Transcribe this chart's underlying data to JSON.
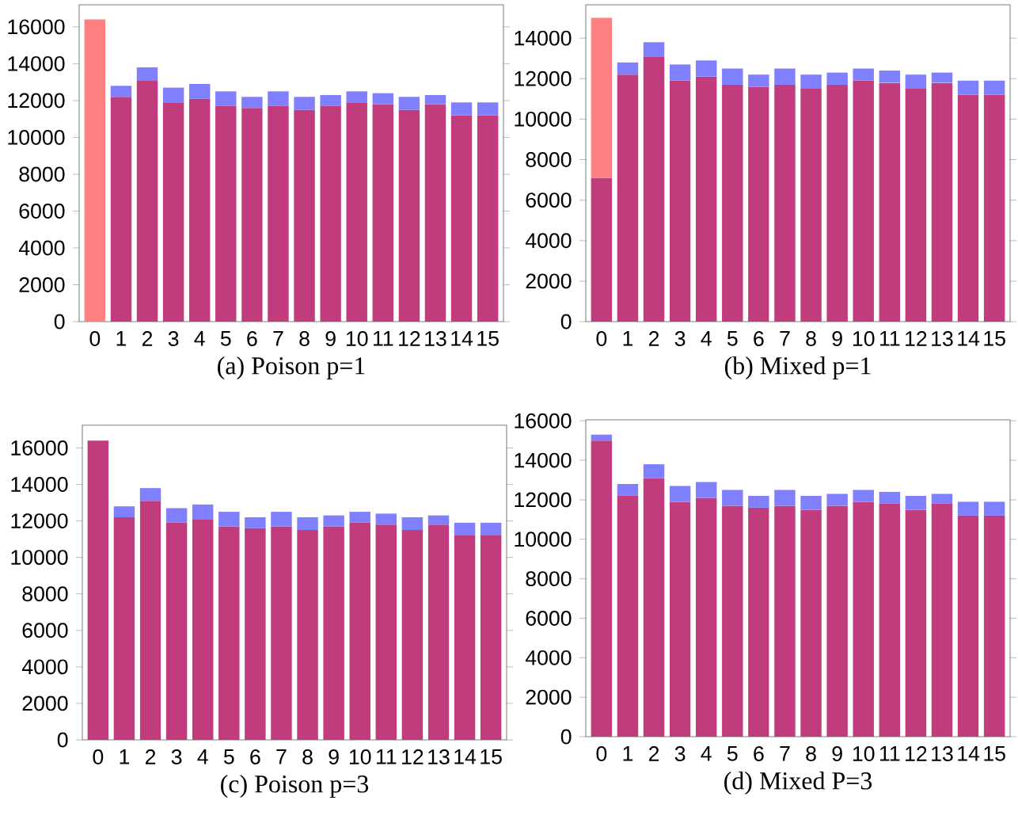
{
  "chart_data": [
    {
      "type": "bar",
      "stacked": true,
      "title": "(a) Poison p=1",
      "categories": [
        "0",
        "1",
        "2",
        "3",
        "4",
        "5",
        "6",
        "7",
        "8",
        "9",
        "10",
        "11",
        "12",
        "13",
        "14",
        "15"
      ],
      "ylim": [
        0,
        17200
      ],
      "yticks": [
        0,
        2000,
        4000,
        6000,
        8000,
        10000,
        12000,
        14000,
        16000
      ],
      "series": [
        {
          "color": "#c03c7c",
          "values": [
            null,
            12200,
            13100,
            11900,
            12100,
            11700,
            11600,
            11700,
            11500,
            11700,
            11900,
            11800,
            11500,
            11800,
            11200,
            11200
          ]
        },
        {
          "color": "#8080ff",
          "values": [
            null,
            600,
            700,
            800,
            800,
            800,
            600,
            800,
            700,
            600,
            600,
            600,
            700,
            500,
            700,
            700
          ]
        },
        {
          "color": "#ff8080",
          "values": [
            16400,
            null,
            null,
            null,
            null,
            null,
            null,
            null,
            null,
            null,
            null,
            null,
            null,
            null,
            null,
            null
          ]
        }
      ]
    },
    {
      "type": "bar",
      "stacked": true,
      "title": "(b) Mixed p=1",
      "categories": [
        "0",
        "1",
        "2",
        "3",
        "4",
        "5",
        "6",
        "7",
        "8",
        "9",
        "10",
        "11",
        "12",
        "13",
        "14",
        "15"
      ],
      "ylim": [
        0,
        15650
      ],
      "yticks": [
        0,
        2000,
        4000,
        6000,
        8000,
        10000,
        12000,
        14000
      ],
      "series": [
        {
          "color": "#c03c7c",
          "values": [
            7100,
            12200,
            13100,
            11900,
            12100,
            11700,
            11600,
            11700,
            11500,
            11700,
            11900,
            11800,
            11500,
            11800,
            11200,
            11200
          ]
        },
        {
          "color": "#8080ff",
          "values": [
            null,
            600,
            700,
            800,
            800,
            800,
            600,
            800,
            700,
            600,
            600,
            600,
            700,
            500,
            700,
            700
          ]
        },
        {
          "color": "#ff8080",
          "values": [
            7900,
            null,
            null,
            null,
            null,
            null,
            null,
            null,
            null,
            null,
            null,
            null,
            null,
            null,
            null,
            null
          ]
        }
      ]
    },
    {
      "type": "bar",
      "stacked": true,
      "title": "(c) Poison p=3",
      "categories": [
        "0",
        "1",
        "2",
        "3",
        "4",
        "5",
        "6",
        "7",
        "8",
        "9",
        "10",
        "11",
        "12",
        "13",
        "14",
        "15"
      ],
      "ylim": [
        0,
        17250
      ],
      "yticks": [
        0,
        2000,
        4000,
        6000,
        8000,
        10000,
        12000,
        14000,
        16000
      ],
      "series": [
        {
          "color": "#c03c7c",
          "values": [
            16400,
            12200,
            13100,
            11900,
            12100,
            11700,
            11600,
            11700,
            11500,
            11700,
            11900,
            11800,
            11500,
            11800,
            11200,
            11200
          ]
        },
        {
          "color": "#8080ff",
          "values": [
            null,
            600,
            700,
            800,
            800,
            800,
            600,
            800,
            700,
            600,
            600,
            600,
            700,
            500,
            700,
            700
          ]
        }
      ]
    },
    {
      "type": "bar",
      "stacked": true,
      "title": "(d) Mixed P=3",
      "categories": [
        "0",
        "1",
        "2",
        "3",
        "4",
        "5",
        "6",
        "7",
        "8",
        "9",
        "10",
        "11",
        "12",
        "13",
        "14",
        "15"
      ],
      "ylim": [
        0,
        16050
      ],
      "yticks": [
        0,
        2000,
        4000,
        6000,
        8000,
        10000,
        12000,
        14000,
        16000
      ],
      "series": [
        {
          "color": "#c03c7c",
          "values": [
            15000,
            12200,
            13100,
            11900,
            12100,
            11700,
            11600,
            11700,
            11500,
            11700,
            11900,
            11800,
            11500,
            11800,
            11200,
            11200
          ]
        },
        {
          "color": "#8080ff",
          "values": [
            300,
            600,
            700,
            800,
            800,
            800,
            600,
            800,
            700,
            600,
            600,
            600,
            700,
            500,
            700,
            700
          ]
        }
      ]
    }
  ]
}
